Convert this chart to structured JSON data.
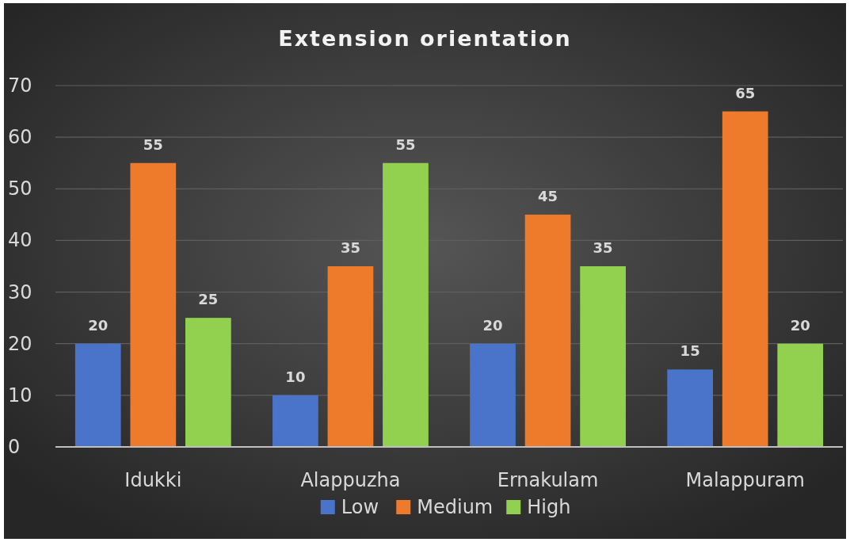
{
  "chart_data": {
    "type": "bar",
    "title": "Extension orientation",
    "categories": [
      "Idukki",
      "Alappuzha",
      "Ernakulam",
      "Malappuram"
    ],
    "series": [
      {
        "name": "Low",
        "color": "#4a74c9",
        "values": [
          20,
          10,
          20,
          15
        ]
      },
      {
        "name": "Medium",
        "color": "#ee7a2c",
        "values": [
          55,
          35,
          45,
          65
        ]
      },
      {
        "name": "High",
        "color": "#92d050",
        "values": [
          25,
          55,
          35,
          20
        ]
      }
    ],
    "ylim": [
      0,
      70
    ],
    "yticks": [
      0,
      10,
      20,
      30,
      40,
      50,
      60,
      70
    ],
    "grid": "y",
    "legend": "bottom",
    "data_labels": true
  }
}
